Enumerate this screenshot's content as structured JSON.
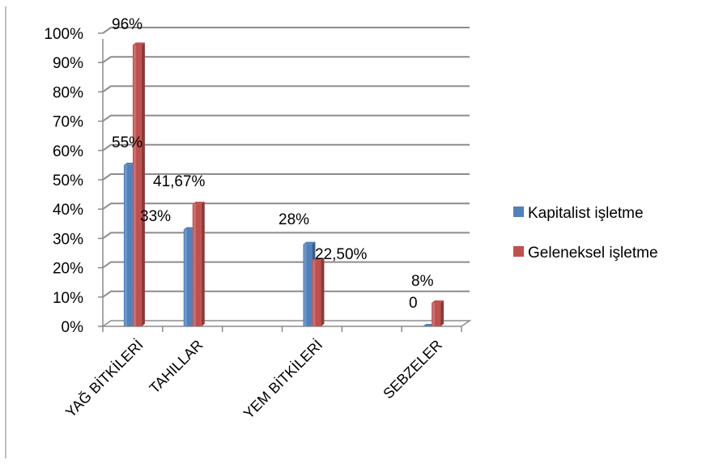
{
  "chart_data": {
    "type": "bar",
    "categories": [
      "YAĞ BİTKİLERİ",
      "TAHILLAR",
      "",
      "YEM BİTKİLERİ",
      "",
      "SEBZELER"
    ],
    "series": [
      {
        "name": "Kapitalist işletme",
        "values": [
          55,
          33,
          null,
          28,
          null,
          0
        ],
        "labels": [
          "55%",
          "33%",
          "",
          "28%",
          "",
          "0"
        ]
      },
      {
        "name": "Geleneksel işletme",
        "values": [
          96,
          41.67,
          null,
          22.5,
          null,
          8
        ],
        "labels": [
          "96%",
          "41,67%",
          "",
          "22,50%",
          "",
          "8%"
        ]
      }
    ],
    "y_ticks": [
      "0%",
      "10%",
      "20%",
      "30%",
      "40%",
      "50%",
      "60%",
      "70%",
      "80%",
      "90%",
      "100%"
    ],
    "ylim": [
      0,
      100
    ],
    "grid": true,
    "legend": "right",
    "colors": {
      "Kapitalist işletme": "#4F81BD",
      "Geleneksel işletme": "#C0504D"
    }
  }
}
